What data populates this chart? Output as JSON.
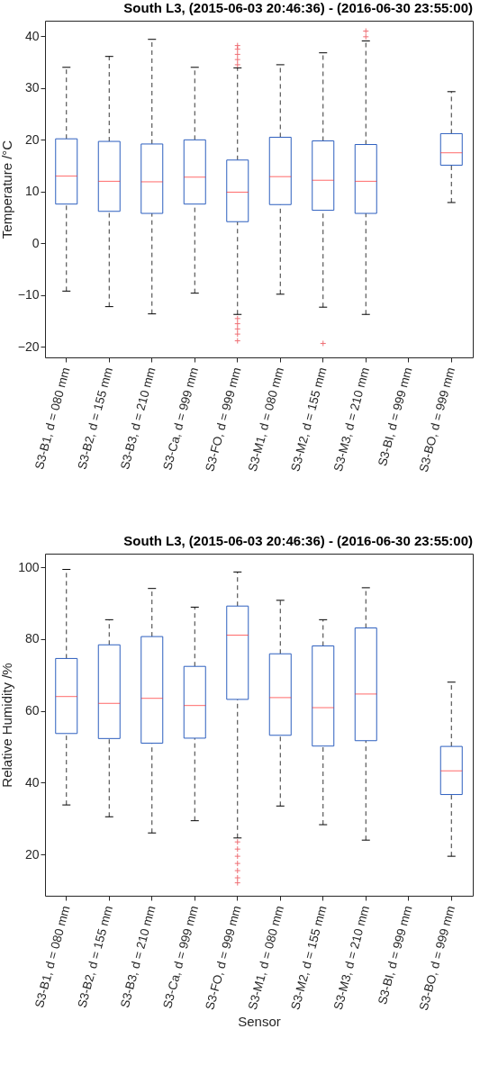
{
  "chart_data": [
    {
      "type": "box",
      "title": "South L3, (2015-06-03 20:46:36) - (2016-06-30 23:55:00)",
      "ylabel": "Temperature /°C",
      "categories": [
        "S3-B1, d = 080 mm",
        "S3-B2, d = 155 mm",
        "S3-B3, d = 210 mm",
        "S3-Ca, d = 999 mm",
        "S3-FO, d = 999 mm",
        "S3-M1, d = 080 mm",
        "S3-M2, d = 155 mm",
        "S3-M3, d = 210 mm",
        "S3-BI, d = 999 mm",
        "S3-BO, d = 999 mm"
      ],
      "color": "#2d5fbf",
      "ylim": [
        -22,
        43
      ],
      "yticks": [
        -20,
        -10,
        0,
        10,
        20,
        30,
        40
      ],
      "grid": false,
      "marker": "cross",
      "line_style": "dashed",
      "boxes": [
        {
          "low": -9.2,
          "q1": 7.6,
          "median": 13.0,
          "q3": 20.2,
          "high": 34.0
        },
        {
          "low": -12.2,
          "q1": 6.2,
          "median": 12.0,
          "q3": 19.7,
          "high": 36.1
        },
        {
          "low": -13.6,
          "q1": 5.8,
          "median": 11.9,
          "q3": 19.2,
          "high": 39.4
        },
        {
          "low": -9.6,
          "q1": 7.6,
          "median": 12.8,
          "q3": 20.0,
          "high": 34.0
        },
        {
          "low": -13.7,
          "q1": 4.2,
          "median": 9.9,
          "q3": 16.1,
          "high": 33.9,
          "outliers": [
            34.5,
            35.5,
            36.5,
            37.5,
            38.2,
            -14.5,
            -15.5,
            -16.5,
            -17.5,
            -18.8
          ]
        },
        {
          "low": -9.8,
          "q1": 7.5,
          "median": 12.9,
          "q3": 20.5,
          "high": 34.5
        },
        {
          "low": -12.3,
          "q1": 6.4,
          "median": 12.2,
          "q3": 19.8,
          "high": 36.8,
          "outliers": [
            -19.3
          ]
        },
        {
          "low": -13.7,
          "q1": 5.8,
          "median": 12.0,
          "q3": 19.1,
          "high": 39.1,
          "outliers": [
            39.9,
            41
          ]
        },
        null,
        {
          "low": 7.9,
          "q1": 15.1,
          "median": 17.5,
          "q3": 21.2,
          "high": 29.3
        }
      ]
    },
    {
      "type": "box",
      "title": "South L3, (2015-06-03 20:46:36) - (2016-06-30 23:55:00)",
      "ylabel": "Relative Humidity /%",
      "xlabel": "Sensor",
      "categories": [
        "S3-B1, d = 080 mm",
        "S3-B2, d = 155 mm",
        "S3-B3, d = 210 mm",
        "S3-Ca, d = 999 mm",
        "S3-FO, d = 999 mm",
        "S3-M1, d = 080 mm",
        "S3-M2, d = 155 mm",
        "S3-M3, d = 210 mm",
        "S3-BI, d = 999 mm",
        "S3-BO, d = 999 mm"
      ],
      "color": "#2d5fbf",
      "ylim": [
        8.5,
        103.8
      ],
      "yticks": [
        20,
        40,
        60,
        80,
        100
      ],
      "grid": false,
      "marker": "cross",
      "line_style": "dashed",
      "boxes": [
        {
          "low": 33.8,
          "q1": 53.7,
          "median": 64.0,
          "q3": 74.6,
          "high": 99.4
        },
        {
          "low": 30.5,
          "q1": 52.3,
          "median": 62.1,
          "q3": 78.4,
          "high": 85.4
        },
        {
          "low": 26.0,
          "q1": 51.0,
          "median": 63.5,
          "q3": 80.7,
          "high": 94.1
        },
        {
          "low": 29.4,
          "q1": 52.4,
          "median": 61.5,
          "q3": 72.4,
          "high": 88.9
        },
        {
          "low": 24.6,
          "q1": 63.2,
          "median": 81.1,
          "q3": 89.2,
          "high": 98.7,
          "outliers": [
            23.5,
            21.5,
            19.5,
            17.5,
            15.5,
            13.5,
            12.1
          ]
        },
        {
          "low": 33.5,
          "q1": 53.2,
          "median": 63.7,
          "q3": 75.9,
          "high": 90.8
        },
        {
          "low": 28.3,
          "q1": 50.2,
          "median": 60.9,
          "q3": 78.1,
          "high": 85.4
        },
        {
          "low": 24.0,
          "q1": 51.7,
          "median": 64.7,
          "q3": 83.1,
          "high": 94.3
        },
        null,
        {
          "low": 19.5,
          "q1": 36.7,
          "median": 43.3,
          "q3": 50.1,
          "high": 68.0
        }
      ]
    }
  ]
}
